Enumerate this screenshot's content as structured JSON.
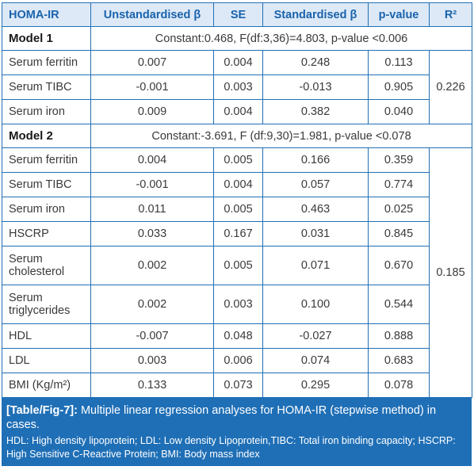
{
  "headers": {
    "col1": "HOMA-IR",
    "col2": "Unstandardised β",
    "col3": "SE",
    "col4": "Standardised β",
    "col5": "p-value",
    "col6": "R²"
  },
  "models": [
    {
      "label": "Model 1",
      "description": "Constant:0.468, F(df:3,36)=4.803, p-value <0.006",
      "r2": "0.226",
      "rows": [
        {
          "name": "Serum ferritin",
          "unstd": "0.007",
          "se": "0.004",
          "std": "0.248",
          "p": "0.113"
        },
        {
          "name": "Serum TIBC",
          "unstd": "-0.001",
          "se": "0.003",
          "std": "-0.013",
          "p": "0.905"
        },
        {
          "name": "Serum iron",
          "unstd": "0.009",
          "se": "0.004",
          "std": "0.382",
          "p": "0.040"
        }
      ]
    },
    {
      "label": "Model 2",
      "description": "Constant:-3.691, F (df:9,30)=1.981, p-value <0.078",
      "r2": "0.185",
      "rows": [
        {
          "name": "Serum ferritin",
          "unstd": "0.004",
          "se": "0.005",
          "std": "0.166",
          "p": "0.359"
        },
        {
          "name": "Serum TIBC",
          "unstd": "-0.001",
          "se": "0.004",
          "std": "0.057",
          "p": "0.774"
        },
        {
          "name": "Serum iron",
          "unstd": "0.011",
          "se": "0.005",
          "std": "0.463",
          "p": "0.025"
        },
        {
          "name": "HSCRP",
          "unstd": "0.033",
          "se": "0.167",
          "std": "0.031",
          "p": "0.845"
        },
        {
          "name": "Serum cholesterol",
          "unstd": "0.002",
          "se": "0.005",
          "std": "0.071",
          "p": "0.670"
        },
        {
          "name": "Serum triglycerides",
          "unstd": "0.002",
          "se": "0.003",
          "std": "0.100",
          "p": "0.544"
        },
        {
          "name": "HDL",
          "unstd": "-0.007",
          "se": "0.048",
          "std": "-0.027",
          "p": "0.888"
        },
        {
          "name": "LDL",
          "unstd": "0.003",
          "se": "0.006",
          "std": "0.074",
          "p": "0.683"
        },
        {
          "name": "BMI (Kg/m²)",
          "unstd": "0.133",
          "se": "0.073",
          "std": "0.295",
          "p": "0.078"
        }
      ]
    }
  ],
  "caption": {
    "label": "[Table/Fig-7]:",
    "text": " Multiple linear regression analyses for HOMA-IR (stepwise method) in cases.",
    "note": "HDL: High density lipoprotein; LDL: Low density Lipoprotein,TIBC: Total iron binding capacity; HSCRP: High Sensitive C-Reactive Protein; BMI: Body mass index"
  }
}
